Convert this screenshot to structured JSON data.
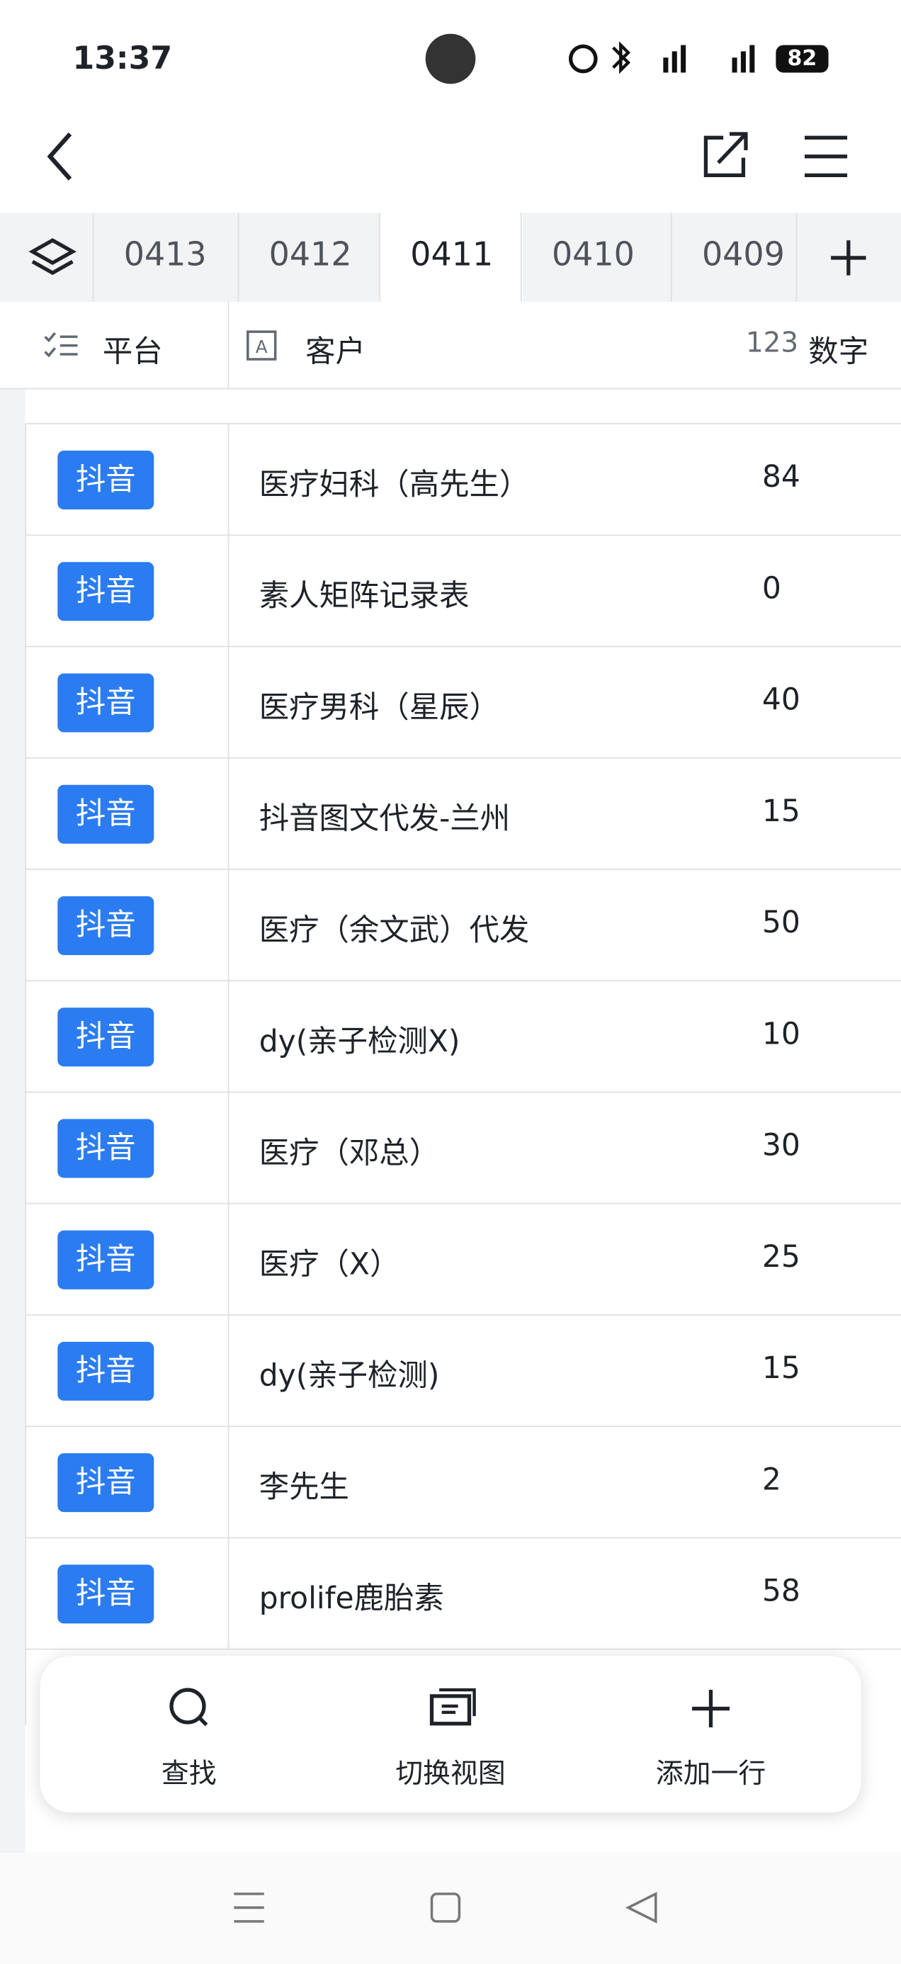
{
  "status_bar": {
    "time": "13:37",
    "battery": "82"
  },
  "tabs": [
    "0413",
    "0412",
    "0411",
    "0410",
    "0409"
  ],
  "active_tab": 2,
  "columns": {
    "platform": "平台",
    "client": "客户",
    "number_icon": "123",
    "number": "数字"
  },
  "rows": [
    [
      "抖音",
      "医疗妇科（高先生）",
      "84"
    ],
    [
      "抖音",
      "素人矩阵记录表",
      "0"
    ],
    [
      "抖音",
      "医疗男科（星辰）",
      "40"
    ],
    [
      "抖音",
      "抖音图文代发-兰州",
      "15"
    ],
    [
      "抖音",
      "医疗（余文武）代发",
      "50"
    ],
    [
      "抖音",
      "dy(亲子检测X)",
      "10"
    ],
    [
      "抖音",
      "医疗（邓总）",
      "30"
    ],
    [
      "抖音",
      "医疗（X）",
      "25"
    ],
    [
      "抖音",
      "dy(亲子检测)",
      "15"
    ],
    [
      "抖音",
      "李先生",
      "2"
    ],
    [
      "抖音",
      "prolife鹿胎素",
      "58"
    ]
  ],
  "toolbar": [
    "查找",
    "切换视图",
    "添加一行"
  ]
}
